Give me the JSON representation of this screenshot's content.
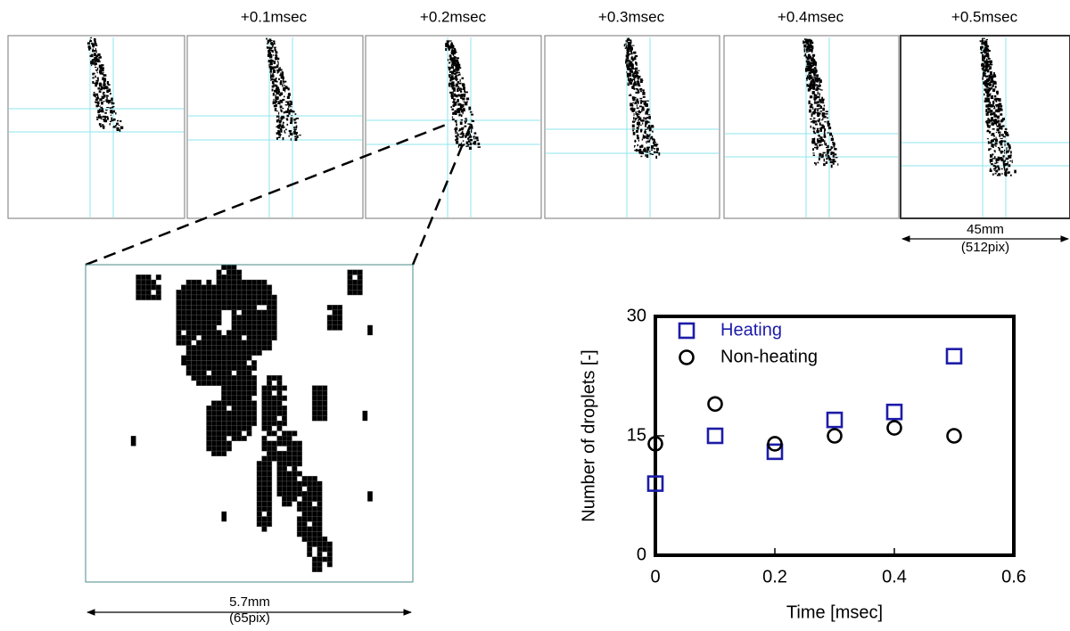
{
  "time_labels": [
    "+0.1msec",
    "+0.2msec",
    "+0.3msec",
    "+0.4msec",
    "+0.5msec"
  ],
  "full_scale": {
    "length": "45mm",
    "pixels": "(512pix)"
  },
  "zoom_scale": {
    "length": "5.7mm",
    "pixels": "(65pix)"
  },
  "chart_data": {
    "type": "scatter",
    "x_label": "Time [msec]",
    "y_label": "Number of droplets [-]",
    "x": [
      0,
      0.1,
      0.2,
      0.3,
      0.4,
      0.5
    ],
    "series": [
      {
        "name": "Heating",
        "color": "#1c1ca8",
        "marker": "square",
        "values": [
          9,
          15,
          13,
          17,
          18,
          25
        ]
      },
      {
        "name": "Non-heating",
        "color": "#000000",
        "marker": "circle",
        "values": [
          14,
          19,
          14,
          15,
          16,
          15
        ]
      }
    ],
    "xlim": [
      0,
      0.6
    ],
    "ylim": [
      0,
      30
    ],
    "xticks": [
      0,
      0.2,
      0.4,
      0.6
    ],
    "yticks": [
      0,
      15,
      30
    ]
  }
}
